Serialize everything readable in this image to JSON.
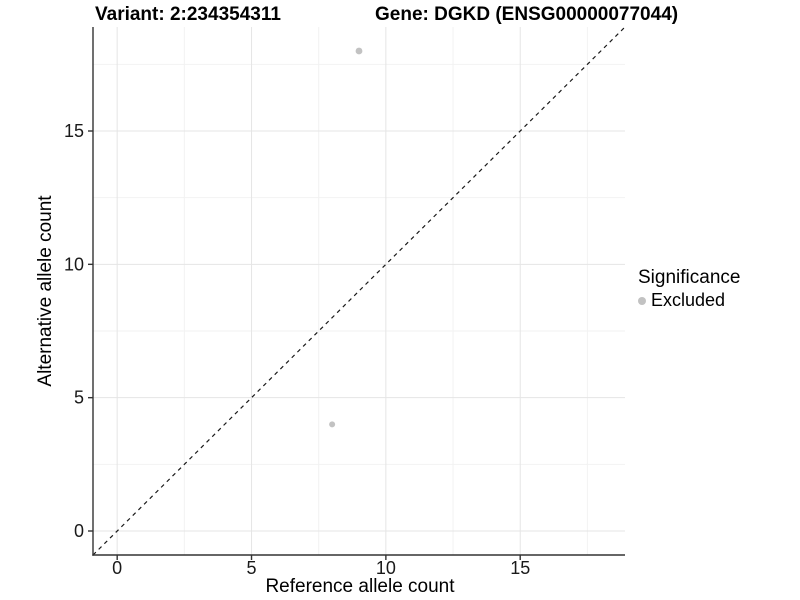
{
  "header": {
    "variant_title": "Variant: 2:234354311",
    "gene_title": "Gene: DGKD (ENSG00000077044)"
  },
  "chart_data": {
    "type": "scatter",
    "title": "Variant: 2:234354311  Gene: DGKD (ENSG00000077044)",
    "xlabel": "Reference allele count",
    "ylabel": "Alternative allele count",
    "xlim": [
      -0.9,
      18.9
    ],
    "ylim": [
      -0.9,
      18.9
    ],
    "x_ticks": [
      0,
      5,
      10,
      15
    ],
    "y_ticks": [
      0,
      5,
      10,
      15
    ],
    "x_minor_ticks": [
      2.5,
      7.5,
      12.5,
      17.5
    ],
    "y_minor_ticks": [
      2.5,
      7.5,
      12.5,
      17.5
    ],
    "grid": true,
    "points": [
      {
        "x": 9,
        "y": 18,
        "significance": "Excluded",
        "r": 3.4
      },
      {
        "x": 8,
        "y": 4,
        "significance": "Excluded",
        "r": 3.0
      }
    ],
    "reference_line": {
      "kind": "diagonal-identity",
      "style": "dashed"
    },
    "legend": {
      "title": "Significance",
      "position": "right",
      "entries": [
        {
          "label": "Excluded",
          "color": "#c2c2c2"
        }
      ]
    }
  },
  "colors": {
    "background": "#ffffff",
    "grid_major": "#e5e5e5",
    "grid_minor": "#f2f2f2",
    "axis_line": "#333333",
    "tick_mark": "#333333",
    "tick_label": "#1a1a1a",
    "point_fill": "#c2c2c2",
    "reference_line": "#1a1a1a"
  }
}
